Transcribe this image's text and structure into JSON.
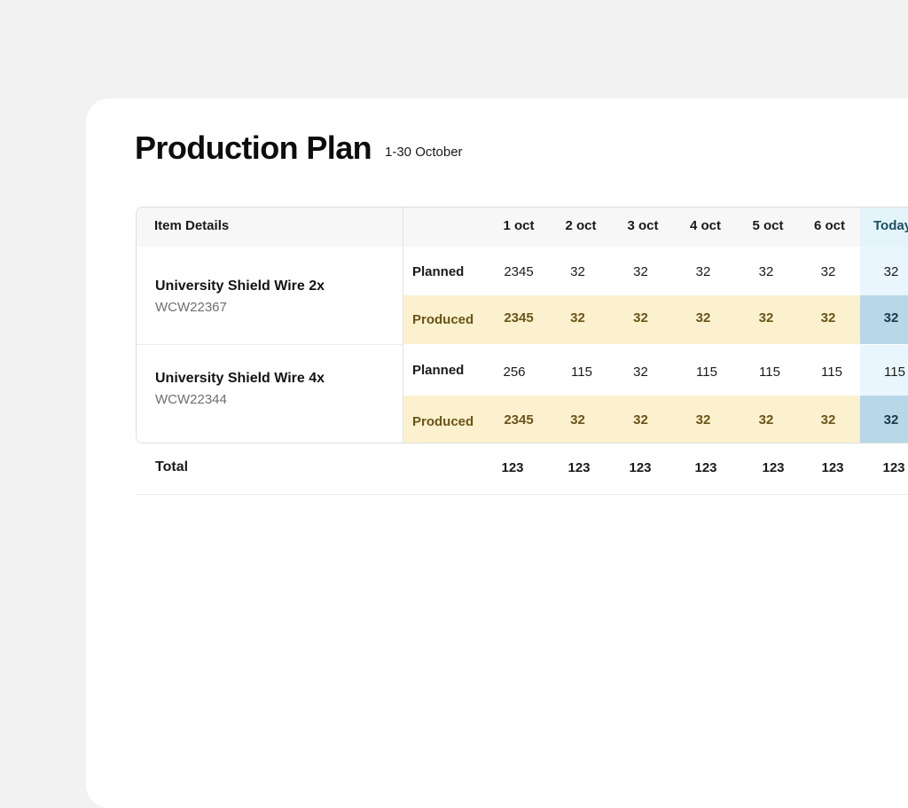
{
  "page": {
    "title": "Production Plan",
    "date_range": "1-30 October"
  },
  "table": {
    "item_details_header": "Item Details",
    "day_headers": [
      "1 oct",
      "2 oct",
      "3 oct",
      "4 oct",
      "5 oct",
      "6 oct",
      "Today"
    ],
    "items": [
      {
        "name": "University Shield Wire 2x",
        "sku": "WCW22367",
        "planned_label": "Planned",
        "planned": [
          "2345",
          "32",
          "32",
          "32",
          "32",
          "32",
          "32"
        ],
        "produced_label": "Produced",
        "produced": [
          "2345",
          "32",
          "32",
          "32",
          "32",
          "32",
          "32"
        ]
      },
      {
        "name": "University Shield Wire 4x",
        "sku": "WCW22344",
        "planned_label": "Planned",
        "planned": [
          "256",
          "115",
          "32",
          "115",
          "115",
          "115",
          "115"
        ],
        "produced_label": "Produced",
        "produced": [
          "2345",
          "32",
          "32",
          "32",
          "32",
          "32",
          "32"
        ]
      }
    ],
    "total_label": "Total",
    "totals": [
      "123",
      "123",
      "123",
      "123",
      "123",
      "123",
      "123"
    ]
  },
  "colors": {
    "produced_background": "#fcf1cf",
    "produced_text": "#6b5418",
    "today_header_background": "#e3f4fb",
    "today_produced_background": "#b6d8e8"
  }
}
